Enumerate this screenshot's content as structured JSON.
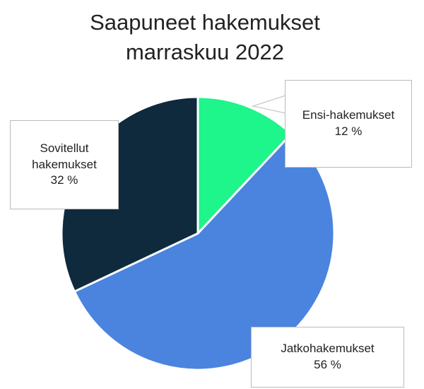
{
  "chart_data": {
    "type": "pie",
    "title": [
      "Saapuneet hakemukset",
      "marraskuu 2022"
    ],
    "categories": [
      "Ensi-hakemukset",
      "Jatkohakemukset",
      "Sovitellut hakemukset"
    ],
    "values": [
      12,
      56,
      32
    ],
    "value_labels": [
      "12 %",
      "56 %",
      "32 %"
    ],
    "colors": [
      "#1ef58a",
      "#4a84df",
      "#0f2a3d"
    ]
  }
}
